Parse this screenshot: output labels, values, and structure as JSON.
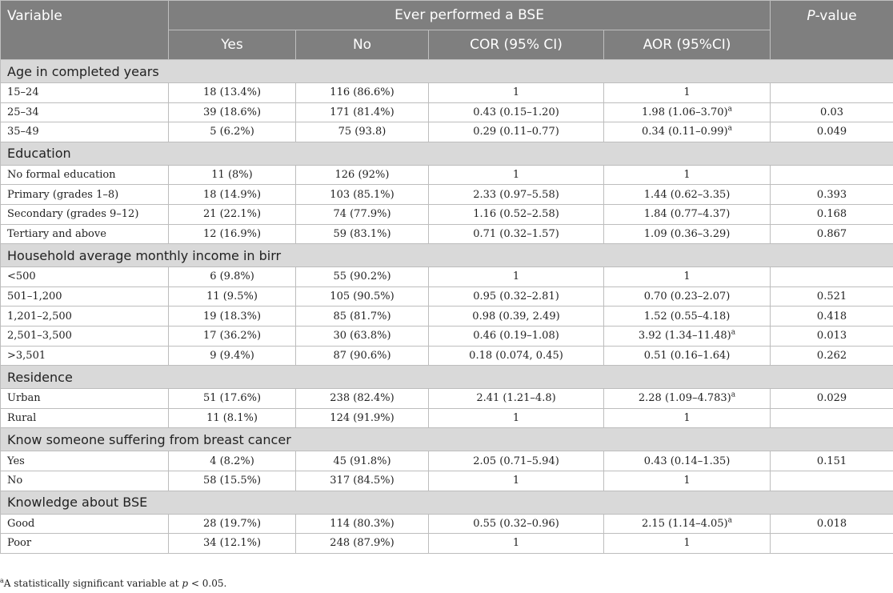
{
  "header": {
    "variable": "Variable",
    "group": "Ever performed a BSE",
    "pvalue_italic": "P",
    "pvalue_rest": "-value",
    "columns": [
      "Yes",
      "No",
      "COR (95% CI)",
      "AOR (95%CI)"
    ]
  },
  "sections": [
    {
      "title": "Age in completed years",
      "rows": [
        {
          "label": "15–24",
          "yes": "18 (13.4%)",
          "no": "116 (86.6%)",
          "cor": "1",
          "aor": "1",
          "aor_sup": "",
          "p": ""
        },
        {
          "label": "25–34",
          "yes": "39 (18.6%)",
          "no": "171 (81.4%)",
          "cor": "0.43 (0.15–1.20)",
          "aor": "1.98 (1.06–3.70)",
          "aor_sup": "a",
          "p": "0.03"
        },
        {
          "label": "35–49",
          "yes": "5 (6.2%)",
          "no": "75 (93.8)",
          "cor": "0.29 (0.11–0.77)",
          "aor": "0.34 (0.11–0.99)",
          "aor_sup": "a",
          "p": "0.049"
        }
      ]
    },
    {
      "title": "Education",
      "rows": [
        {
          "label": "No formal education",
          "yes": "11 (8%)",
          "no": "126 (92%)",
          "cor": "1",
          "aor": "1",
          "aor_sup": "",
          "p": ""
        },
        {
          "label": "Primary (grades 1–8)",
          "yes": "18 (14.9%)",
          "no": "103 (85.1%)",
          "cor": "2.33 (0.97–5.58)",
          "aor": "1.44 (0.62–3.35)",
          "aor_sup": "",
          "p": "0.393"
        },
        {
          "label": "Secondary (grades 9–12)",
          "yes": "21 (22.1%)",
          "no": "74 (77.9%)",
          "cor": "1.16 (0.52–2.58)",
          "aor": "1.84 (0.77–4.37)",
          "aor_sup": "",
          "p": "0.168"
        },
        {
          "label": "Tertiary and above",
          "yes": "12 (16.9%)",
          "no": "59 (83.1%)",
          "cor": "0.71 (0.32–1.57)",
          "aor": "1.09 (0.36–3.29)",
          "aor_sup": "",
          "p": "0.867"
        }
      ]
    },
    {
      "title": "Household average monthly income in birr",
      "rows": [
        {
          "label": "<500",
          "yes": "6 (9.8%)",
          "no": "55 (90.2%)",
          "cor": "1",
          "aor": "1",
          "aor_sup": "",
          "p": ""
        },
        {
          "label": "501–1,200",
          "yes": "11 (9.5%)",
          "no": "105 (90.5%)",
          "cor": "0.95 (0.32–2.81)",
          "aor": "0.70 (0.23–2.07)",
          "aor_sup": "",
          "p": "0.521"
        },
        {
          "label": "1,201–2,500",
          "yes": "19 (18.3%)",
          "no": "85 (81.7%)",
          "cor": "0.98 (0.39, 2.49)",
          "aor": "1.52 (0.55–4.18)",
          "aor_sup": "",
          "p": "0.418"
        },
        {
          "label": "2,501–3,500",
          "yes": "17 (36.2%)",
          "no": "30 (63.8%)",
          "cor": "0.46 (0.19–1.08)",
          "aor": "3.92 (1.34–11.48)",
          "aor_sup": "a",
          "p": "0.013"
        },
        {
          "label": ">3,501",
          "yes": "9 (9.4%)",
          "no": "87 (90.6%)",
          "cor": "0.18 (0.074, 0.45)",
          "aor": "0.51 (0.16–1.64)",
          "aor_sup": "",
          "p": "0.262"
        }
      ]
    },
    {
      "title": "Residence",
      "rows": [
        {
          "label": "Urban",
          "yes": "51 (17.6%)",
          "no": "238 (82.4%)",
          "cor": "2.41 (1.21–4.8)",
          "aor": "2.28 (1.09–4.783)",
          "aor_sup": "a",
          "p": "0.029"
        },
        {
          "label": "Rural",
          "yes": "11 (8.1%)",
          "no": "124 (91.9%)",
          "cor": "1",
          "aor": "1",
          "aor_sup": "",
          "p": ""
        }
      ]
    },
    {
      "title": "Know someone suffering from breast cancer",
      "rows": [
        {
          "label": "Yes",
          "yes": "4 (8.2%)",
          "no": "45 (91.8%)",
          "cor": "2.05 (0.71–5.94)",
          "aor": "0.43 (0.14–1.35)",
          "aor_sup": "",
          "p": "0.151"
        },
        {
          "label": "No",
          "yes": "58 (15.5%)",
          "no": "317 (84.5%)",
          "cor": "1",
          "aor": "1",
          "aor_sup": "",
          "p": ""
        }
      ]
    },
    {
      "title": "Knowledge about BSE",
      "rows": [
        {
          "label": "Good",
          "yes": "28 (19.7%)",
          "no": "114 (80.3%)",
          "cor": "0.55 (0.32–0.96)",
          "aor": "2.15 (1.14–4.05)",
          "aor_sup": "a",
          "p": "0.018"
        },
        {
          "label": "Poor",
          "yes": "34 (12.1%)",
          "no": "248 (87.9%)",
          "cor": "1",
          "aor": "1",
          "aor_sup": "",
          "p": ""
        }
      ]
    }
  ],
  "footnote": {
    "mark": "a",
    "text": "A statistically significant variable at ",
    "p_italic": "p",
    "threshold": " < 0.05."
  }
}
